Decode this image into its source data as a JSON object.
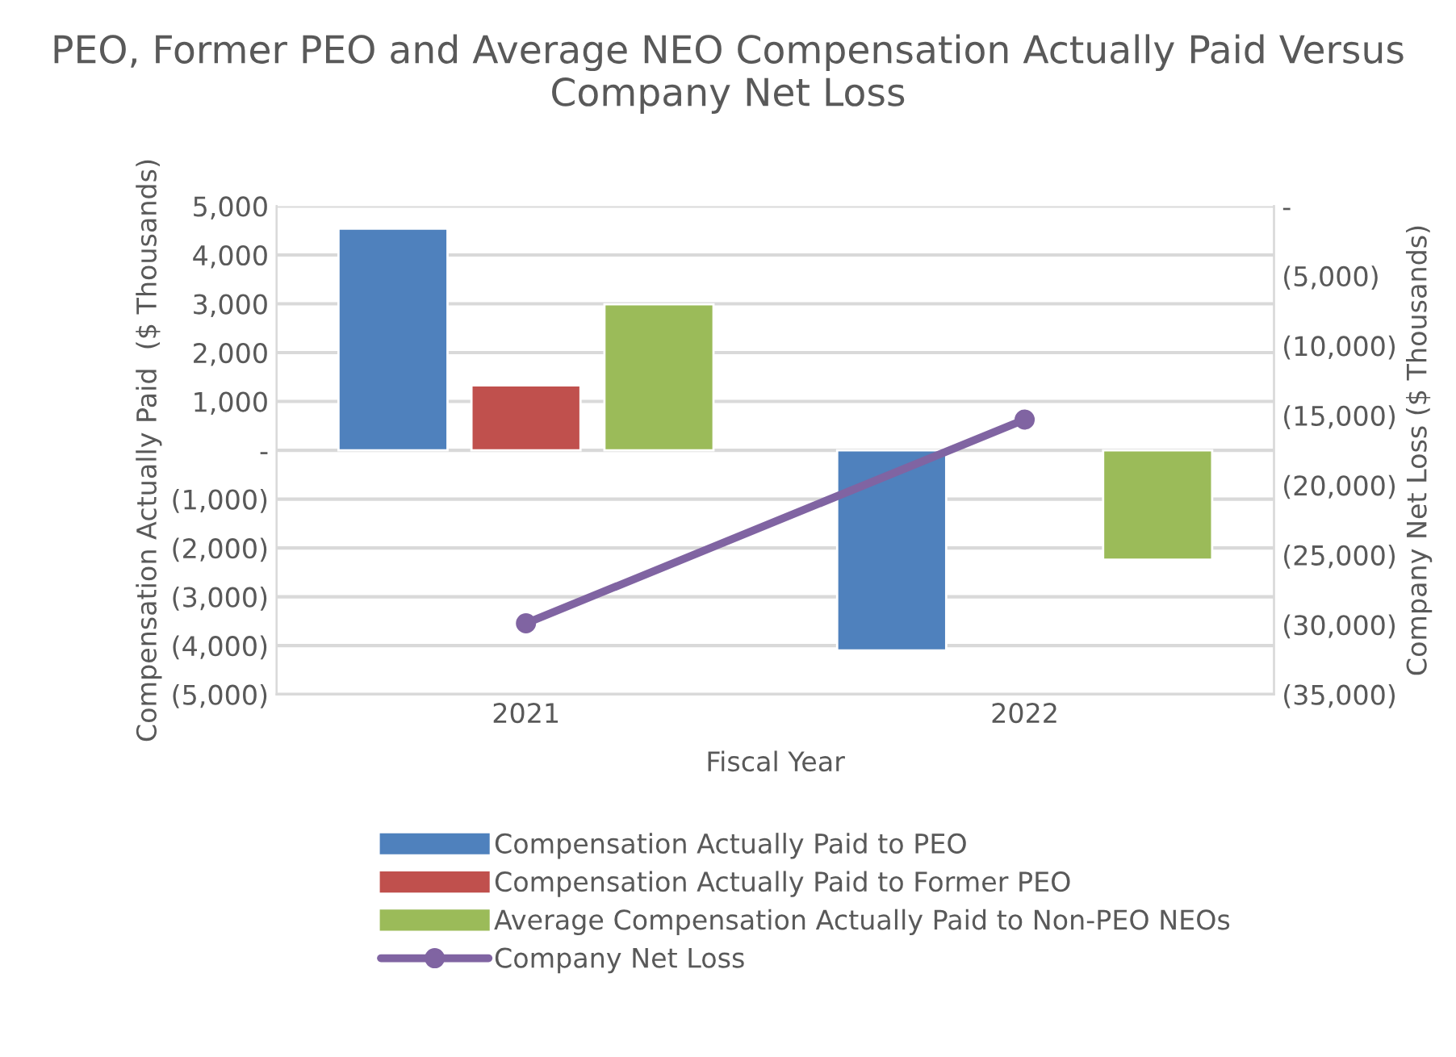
{
  "chart_data": {
    "type": "bar",
    "title": "PEO, Former PEO and Average NEO Compensation Actually Paid Versus Company Net Loss",
    "xlabel": "Fiscal Year",
    "ylabel": "Compensation Actually Paid  ($ Thousands)",
    "y2label": "Company Net Loss ($ Thousands)",
    "categories": [
      "2021",
      "2022"
    ],
    "series": [
      {
        "name": "Compensation Actually Paid to PEO",
        "color": "#4f81bd",
        "values": [
          4540,
          -4100
        ]
      },
      {
        "name": "Compensation Actually Paid to Former PEO",
        "color": "#c0504d",
        "values": [
          1330,
          null
        ]
      },
      {
        "name": "Average Compensation Actually Paid to Non-PEO NEOs",
        "color": "#9bbb59",
        "values": [
          2990,
          -2240
        ]
      },
      {
        "name": "Company Net Loss",
        "color": "#8064a2",
        "type": "line",
        "axis": "y2",
        "marker": "circle",
        "values": [
          -29900,
          -15300
        ]
      }
    ],
    "ylim": [
      -5000,
      5000
    ],
    "yticks": [
      {
        "value": -5000,
        "label": "(5,000)"
      },
      {
        "value": -4000,
        "label": "(4,000)"
      },
      {
        "value": -3000,
        "label": "(3,000)"
      },
      {
        "value": -2000,
        "label": "(2,000)"
      },
      {
        "value": -1000,
        "label": "(1,000)"
      },
      {
        "value": 0,
        "label": "-"
      },
      {
        "value": 1000,
        "label": "1,000"
      },
      {
        "value": 2000,
        "label": "2,000"
      },
      {
        "value": 3000,
        "label": "3,000"
      },
      {
        "value": 4000,
        "label": "4,000"
      },
      {
        "value": 5000,
        "label": "5,000"
      }
    ],
    "y2lim": [
      -35000,
      0
    ],
    "y2ticks": [
      {
        "value": -35000,
        "label": "(35,000)"
      },
      {
        "value": -30000,
        "label": "(30,000)"
      },
      {
        "value": -25000,
        "label": "(25,000)"
      },
      {
        "value": -20000,
        "label": "(20,000)"
      },
      {
        "value": -15000,
        "label": "(15,000)"
      },
      {
        "value": -10000,
        "label": "(10,000)"
      },
      {
        "value": -5000,
        "label": "(5,000)"
      },
      {
        "value": 0,
        "label": "-"
      }
    ],
    "grid": "y",
    "legend": "bottom"
  }
}
